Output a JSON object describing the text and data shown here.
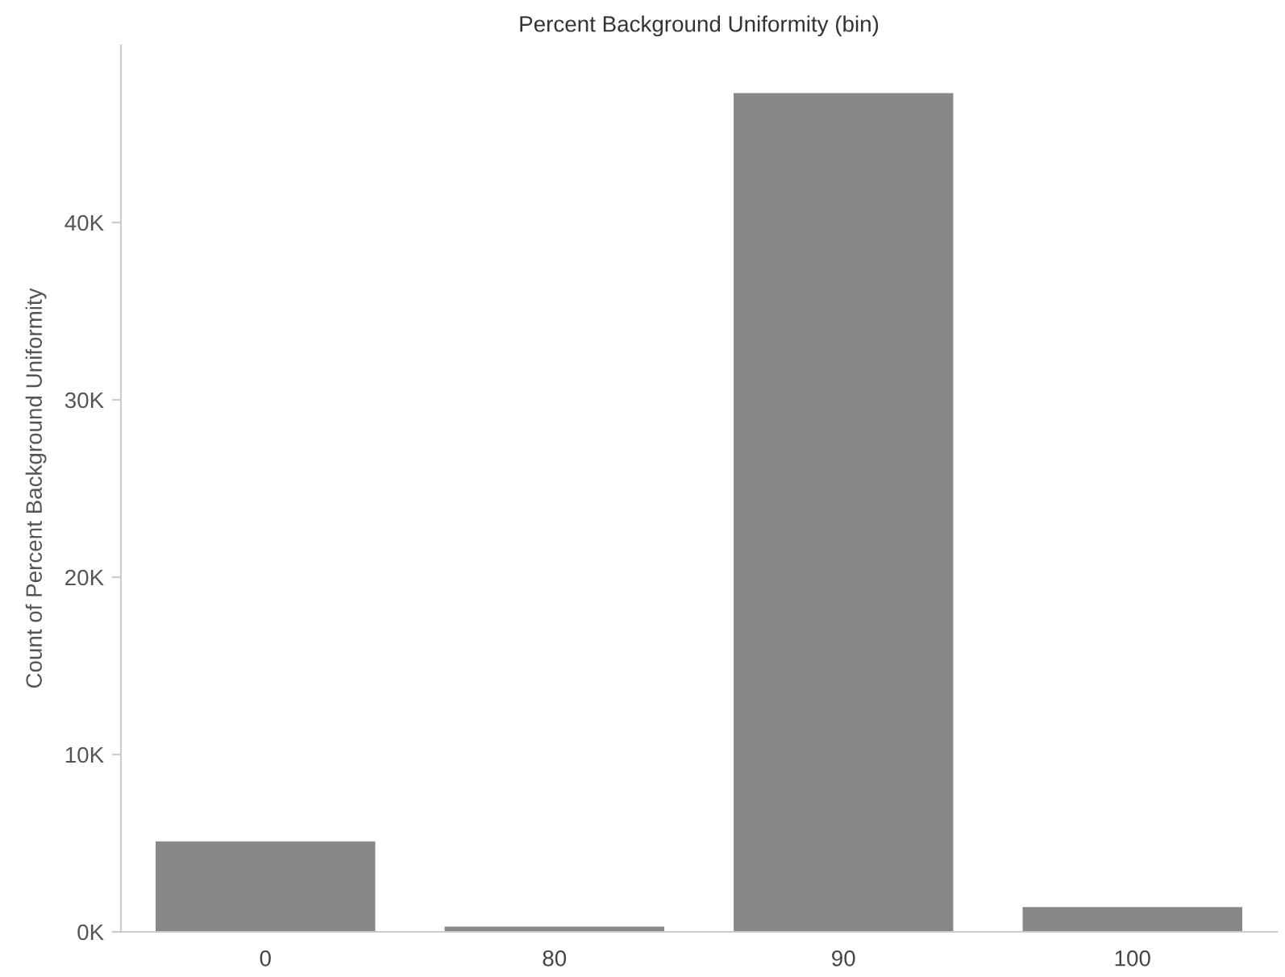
{
  "chart_data": {
    "type": "bar",
    "title": "Percent Background Uniformity (bin)",
    "ylabel": "Count of Percent Background Uniformity",
    "categories": [
      "0",
      "80",
      "90",
      "100"
    ],
    "values": [
      5100,
      300,
      47300,
      1400
    ],
    "color": "#888888",
    "ylim": [
      0,
      50000
    ],
    "yticks": [
      {
        "value": 0,
        "label": "0K"
      },
      {
        "value": 10000,
        "label": "10K"
      },
      {
        "value": 20000,
        "label": "20K"
      },
      {
        "value": 30000,
        "label": "30K"
      },
      {
        "value": 40000,
        "label": "40K"
      }
    ],
    "grid": false,
    "legend": false
  }
}
